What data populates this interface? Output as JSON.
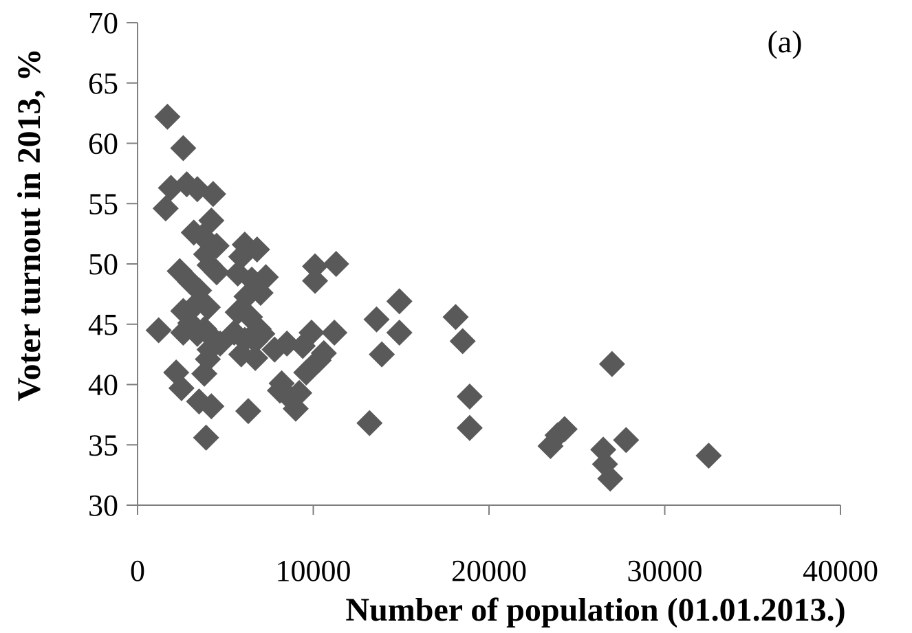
{
  "chart_data": {
    "type": "scatter",
    "annotation": "(a)",
    "xlabel": "Number of population (01.01.2013.)",
    "ylabel": "Voter turnout in 2013, %",
    "xlim": [
      0,
      40000
    ],
    "ylim": [
      30,
      70
    ],
    "x_ticks": [
      0,
      10000,
      20000,
      30000,
      40000
    ],
    "y_ticks": [
      30,
      35,
      40,
      45,
      50,
      55,
      60,
      65,
      70
    ],
    "grid": false,
    "marker": "diamond",
    "marker_color": "#595959",
    "points": [
      [
        1700,
        62.2
      ],
      [
        2600,
        59.6
      ],
      [
        1600,
        54.6
      ],
      [
        1900,
        56.3
      ],
      [
        2800,
        56.6
      ],
      [
        3400,
        56.2
      ],
      [
        4300,
        55.8
      ],
      [
        3200,
        52.6
      ],
      [
        3700,
        52.3
      ],
      [
        4200,
        53.6
      ],
      [
        4500,
        51.5
      ],
      [
        3900,
        50.8
      ],
      [
        4100,
        49.9
      ],
      [
        4500,
        49.3
      ],
      [
        2400,
        49.4
      ],
      [
        3000,
        48.5
      ],
      [
        3500,
        47.8
      ],
      [
        3300,
        46.6
      ],
      [
        4000,
        46.4
      ],
      [
        2600,
        46.1
      ],
      [
        3000,
        45.1
      ],
      [
        3800,
        44.6
      ],
      [
        4300,
        43.8
      ],
      [
        4700,
        43.4
      ],
      [
        1200,
        44.5
      ],
      [
        2600,
        44.3
      ],
      [
        3400,
        44.2
      ],
      [
        4100,
        42.9
      ],
      [
        4000,
        42.1
      ],
      [
        2200,
        41.0
      ],
      [
        2500,
        39.7
      ],
      [
        3800,
        40.9
      ],
      [
        3500,
        38.6
      ],
      [
        4200,
        38.2
      ],
      [
        3900,
        35.6
      ],
      [
        6100,
        51.6
      ],
      [
        6800,
        51.2
      ],
      [
        5900,
        50.6
      ],
      [
        5700,
        49.2
      ],
      [
        6500,
        48.7
      ],
      [
        7300,
        48.9
      ],
      [
        7000,
        47.6
      ],
      [
        6200,
        47.3
      ],
      [
        5700,
        46.0
      ],
      [
        6400,
        45.6
      ],
      [
        6900,
        44.6
      ],
      [
        5500,
        44.3
      ],
      [
        6100,
        43.7
      ],
      [
        6700,
        43.6
      ],
      [
        7100,
        44.2
      ],
      [
        5900,
        42.5
      ],
      [
        6700,
        42.2
      ],
      [
        6300,
        37.8
      ],
      [
        7800,
        42.9
      ],
      [
        8500,
        43.4
      ],
      [
        9400,
        43.2
      ],
      [
        9900,
        44.3
      ],
      [
        8200,
        40.1
      ],
      [
        8600,
        39.0
      ],
      [
        9200,
        39.3
      ],
      [
        8100,
        39.5
      ],
      [
        9000,
        38.0
      ],
      [
        9600,
        41.0
      ],
      [
        10300,
        42.0
      ],
      [
        10600,
        42.6
      ],
      [
        10100,
        49.8
      ],
      [
        10100,
        48.6
      ],
      [
        11300,
        50.0
      ],
      [
        11200,
        44.3
      ],
      [
        13600,
        45.4
      ],
      [
        14900,
        46.9
      ],
      [
        14900,
        44.3
      ],
      [
        13900,
        42.5
      ],
      [
        13200,
        36.8
      ],
      [
        18100,
        45.6
      ],
      [
        18500,
        43.6
      ],
      [
        18900,
        39.0
      ],
      [
        18900,
        36.4
      ],
      [
        23500,
        34.9
      ],
      [
        23900,
        35.8
      ],
      [
        24300,
        36.3
      ],
      [
        27000,
        41.7
      ],
      [
        26500,
        34.6
      ],
      [
        26600,
        33.4
      ],
      [
        26900,
        32.2
      ],
      [
        27800,
        35.4
      ],
      [
        32500,
        34.1
      ]
    ]
  }
}
